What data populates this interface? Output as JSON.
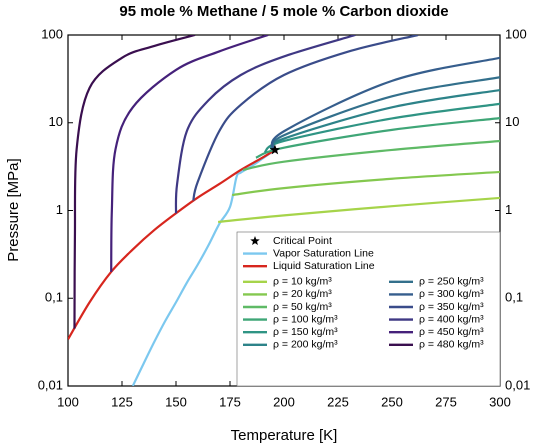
{
  "chart_data": {
    "type": "line",
    "title": "95 mole % Methane / 5 mole % Carbon dioxide",
    "x_label": "Temperature [K]",
    "y_label": "Pressure [MPa]",
    "xlim": [
      100,
      300
    ],
    "xticks": [
      100,
      125,
      150,
      175,
      200,
      225,
      250,
      275,
      300
    ],
    "ylim": [
      0.01,
      100
    ],
    "ylog": true,
    "yticks": [
      {
        "value": 0.01,
        "label": "0,01"
      },
      {
        "value": 0.1,
        "label": "0,1"
      },
      1,
      10,
      100
    ],
    "y_right_labels": true,
    "legend": "lower right",
    "series": [
      {
        "name": "Critical Point",
        "type": "scatter",
        "marker": "star",
        "color": "#000000",
        "x": [
          195.8
        ],
        "values": [
          4.9
        ]
      },
      {
        "name": "Vapor Saturation Line",
        "color": "#7cc8ef",
        "x": [
          130,
          135,
          140,
          145,
          150,
          155,
          160,
          165,
          170,
          175,
          178,
          180,
          185,
          190,
          195.8
        ],
        "values": [
          0.01,
          0.018,
          0.032,
          0.055,
          0.09,
          0.15,
          0.24,
          0.4,
          0.7,
          1.1,
          2.4,
          2.7,
          3.2,
          3.9,
          4.9
        ]
      },
      {
        "name": "Liquid Saturation Line",
        "color": "#d7261e",
        "x": [
          100,
          110,
          120,
          130,
          140,
          150,
          160,
          170,
          180,
          190,
          195.8
        ],
        "values": [
          0.034,
          0.09,
          0.2,
          0.36,
          0.6,
          0.93,
          1.4,
          2.0,
          2.9,
          4.0,
          4.9
        ]
      },
      {
        "name": "ρ = 10 kg/m³",
        "color": "#a6d44a",
        "x": [
          169.5,
          200,
          250,
          300
        ],
        "values": [
          0.74,
          0.88,
          1.12,
          1.39
        ]
      },
      {
        "name": "ρ = 20 kg/m³",
        "color": "#84c84f",
        "x": [
          176,
          200,
          250,
          300
        ],
        "values": [
          1.5,
          1.8,
          2.3,
          2.75
        ]
      },
      {
        "name": "ρ = 50 kg/m³",
        "color": "#5fba66",
        "x": [
          181,
          200,
          250,
          300
        ],
        "values": [
          2.9,
          3.6,
          4.9,
          6.2
        ]
      },
      {
        "name": "ρ = 100 kg/m³",
        "color": "#3fa677",
        "x": [
          187,
          200,
          250,
          300
        ],
        "values": [
          4.0,
          5.2,
          8.3,
          11.3
        ]
      },
      {
        "name": "ρ = 150 kg/m³",
        "color": "#2f9484",
        "x": [
          191,
          200,
          250,
          300
        ],
        "values": [
          4.6,
          6.2,
          11.2,
          16.4
        ]
      },
      {
        "name": "ρ = 200 kg/m³",
        "color": "#2d8389",
        "x": [
          194,
          200,
          250,
          300
        ],
        "values": [
          4.9,
          6.6,
          15,
          23.6
        ]
      },
      {
        "name": "ρ = 250 kg/m³",
        "color": "#33708c",
        "x": [
          195.8,
          200,
          250,
          300
        ],
        "values": [
          4.9,
          7.2,
          20,
          33
        ]
      },
      {
        "name": "ρ = 300 kg/m³",
        "color": "#365e8d",
        "x": [
          195,
          200,
          250,
          300
        ],
        "values": [
          4.85,
          8,
          30,
          55
        ]
      },
      {
        "name": "ρ = 350 kg/m³",
        "color": "#3a4c8a",
        "x": [
          158,
          160,
          170,
          180,
          200,
          230,
          262
        ],
        "values": [
          1.3,
          2.1,
          8,
          16,
          35,
          65,
          100
        ]
      },
      {
        "name": "ρ = 400 kg/m³",
        "color": "#3f3884",
        "x": [
          150,
          150.5,
          155,
          165,
          180,
          200,
          233
        ],
        "values": [
          0.93,
          2,
          8,
          18,
          35,
          57,
          100
        ]
      },
      {
        "name": "ρ = 450 kg/m³",
        "color": "#45217a",
        "x": [
          120,
          120.3,
          122,
          130,
          150,
          170,
          192.6
        ],
        "values": [
          0.2,
          1,
          5,
          15,
          40,
          65,
          100
        ]
      },
      {
        "name": "ρ = 480 kg/m³",
        "color": "#3a0f4f",
        "x": [
          103,
          103.2,
          104,
          110,
          125,
          140,
          158.8
        ],
        "values": [
          0.045,
          0.5,
          5,
          25,
          55,
          75,
          100
        ]
      }
    ]
  }
}
